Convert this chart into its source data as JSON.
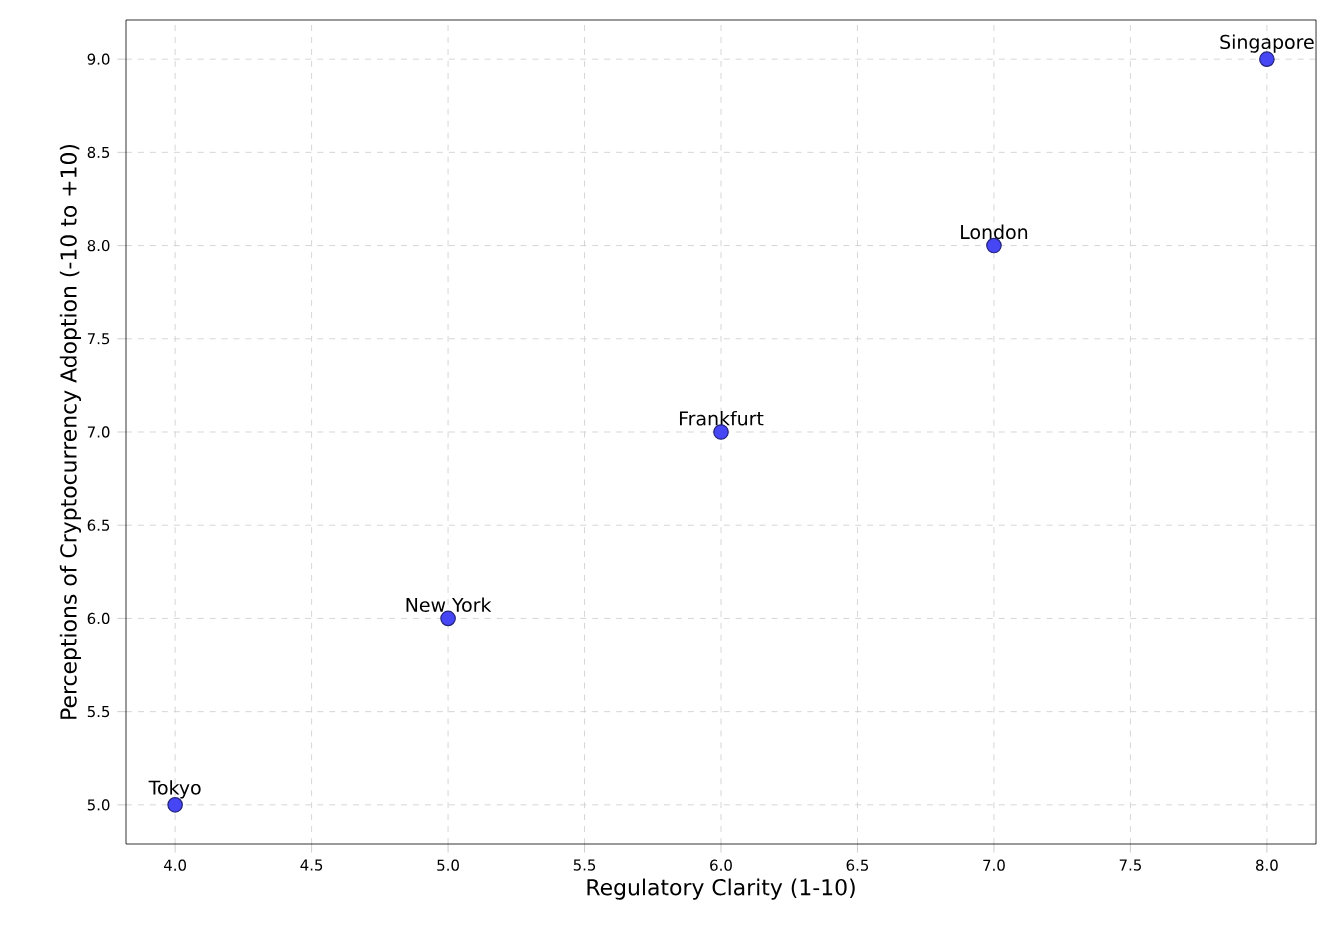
{
  "chart_data": {
    "type": "scatter",
    "xlabel": "Regulatory Clarity (1-10)",
    "ylabel": "Perceptions of Cryptocurrency Adoption (-10 to +10)",
    "x": [
      4,
      5,
      6,
      7,
      8
    ],
    "series": [
      {
        "color": "#4646f5",
        "values": [
          5,
          6,
          7,
          8,
          9
        ]
      }
    ],
    "marker": "circle",
    "grid": true,
    "xlim": [
      3.82,
      8.18
    ],
    "ylim": [
      4.79,
      9.21
    ],
    "xticks": [
      {
        "value": 4,
        "label": "4.0"
      },
      {
        "value": 4.5,
        "label": "4.5"
      },
      {
        "value": 5,
        "label": "5.0"
      },
      {
        "value": 5.5,
        "label": "5.5"
      },
      {
        "value": 6,
        "label": "6.0"
      },
      {
        "value": 6.5,
        "label": "6.5"
      },
      {
        "value": 7,
        "label": "7.0"
      },
      {
        "value": 7.5,
        "label": "7.5"
      },
      {
        "value": 8,
        "label": "8.0"
      }
    ],
    "yticks": [
      {
        "value": 5,
        "label": "5.0"
      },
      {
        "value": 5.5,
        "label": "5.5"
      },
      {
        "value": 6,
        "label": "6.0"
      },
      {
        "value": 6.5,
        "label": "6.5"
      },
      {
        "value": 7,
        "label": "7.0"
      },
      {
        "value": 7.5,
        "label": "7.5"
      },
      {
        "value": 8,
        "label": "8.0"
      },
      {
        "value": 8.5,
        "label": "8.5"
      },
      {
        "value": 9,
        "label": "9.0"
      }
    ],
    "annotations": [
      {
        "text": "Tokyo",
        "x": 4,
        "y": 5
      },
      {
        "text": "New York",
        "x": 5,
        "y": 6
      },
      {
        "text": "Frankfurt",
        "x": 6,
        "y": 7
      },
      {
        "text": "London",
        "x": 7,
        "y": 8
      },
      {
        "text": "Singapore",
        "x": 8,
        "y": 9
      }
    ]
  }
}
